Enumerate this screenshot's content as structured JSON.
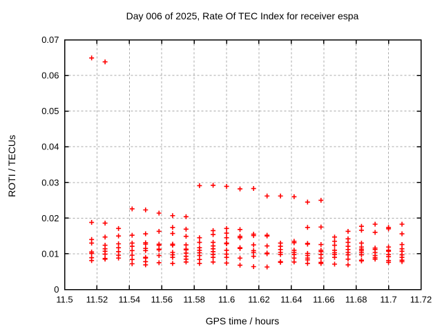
{
  "chart_data": {
    "type": "scatter",
    "title": "Day 006 of 2025, Rate Of TEC Index for receiver espa",
    "xlabel": "GPS time / hours",
    "ylabel": "ROTI / TECUs",
    "xlim": [
      11.5,
      11.72
    ],
    "ylim": [
      0,
      0.07
    ],
    "grid": true,
    "legend_position": "none",
    "marker": {
      "shape": "plus",
      "color": "#ff0000",
      "size": 7
    },
    "xticks": [
      {
        "v": 11.5,
        "label": "11.5"
      },
      {
        "v": 11.52,
        "label": "11.52"
      },
      {
        "v": 11.54,
        "label": "11.54"
      },
      {
        "v": 11.56,
        "label": "11.56"
      },
      {
        "v": 11.58,
        "label": "11.58"
      },
      {
        "v": 11.6,
        "label": "11.6"
      },
      {
        "v": 11.62,
        "label": "11.62"
      },
      {
        "v": 11.64,
        "label": "11.64"
      },
      {
        "v": 11.66,
        "label": "11.66"
      },
      {
        "v": 11.68,
        "label": "11.68"
      },
      {
        "v": 11.7,
        "label": "11.7"
      },
      {
        "v": 11.72,
        "label": "11.72"
      }
    ],
    "yticks": [
      {
        "v": 0,
        "label": "0"
      },
      {
        "v": 0.01,
        "label": "0.01"
      },
      {
        "v": 0.02,
        "label": "0.02"
      },
      {
        "v": 0.03,
        "label": "0.03"
      },
      {
        "v": 0.04,
        "label": "0.04"
      },
      {
        "v": 0.05,
        "label": "0.05"
      },
      {
        "v": 0.06,
        "label": "0.06"
      },
      {
        "v": 0.07,
        "label": "0.07"
      }
    ],
    "series": [
      {
        "name": "ROTI",
        "points": [
          [
            11.5167,
            0.0649
          ],
          [
            11.5167,
            0.0188
          ],
          [
            11.5167,
            0.014
          ],
          [
            11.5167,
            0.013
          ],
          [
            11.5167,
            0.0105
          ],
          [
            11.5167,
            0.0101
          ],
          [
            11.5167,
            0.0089
          ],
          [
            11.5167,
            0.0081
          ],
          [
            11.525,
            0.0638
          ],
          [
            11.525,
            0.0186
          ],
          [
            11.525,
            0.0147
          ],
          [
            11.525,
            0.0124
          ],
          [
            11.525,
            0.0114
          ],
          [
            11.525,
            0.0107
          ],
          [
            11.525,
            0.0099
          ],
          [
            11.525,
            0.0087
          ],
          [
            11.525,
            0.0085
          ],
          [
            11.5333,
            0.0171
          ],
          [
            11.5333,
            0.015
          ],
          [
            11.5333,
            0.0128
          ],
          [
            11.5333,
            0.0117
          ],
          [
            11.5333,
            0.0106
          ],
          [
            11.5333,
            0.0096
          ],
          [
            11.5333,
            0.0088
          ],
          [
            11.5417,
            0.0226
          ],
          [
            11.5417,
            0.0152
          ],
          [
            11.5417,
            0.013
          ],
          [
            11.5417,
            0.0121
          ],
          [
            11.5417,
            0.0109
          ],
          [
            11.5417,
            0.0096
          ],
          [
            11.5417,
            0.0084
          ],
          [
            11.5417,
            0.0072
          ],
          [
            11.55,
            0.0223
          ],
          [
            11.55,
            0.0156
          ],
          [
            11.55,
            0.0131
          ],
          [
            11.55,
            0.0127
          ],
          [
            11.55,
            0.0115
          ],
          [
            11.55,
            0.0109
          ],
          [
            11.55,
            0.009
          ],
          [
            11.55,
            0.0088
          ],
          [
            11.55,
            0.0078
          ],
          [
            11.55,
            0.0069
          ],
          [
            11.5583,
            0.0214
          ],
          [
            11.5583,
            0.0163
          ],
          [
            11.5583,
            0.0127
          ],
          [
            11.5583,
            0.0124
          ],
          [
            11.5583,
            0.0113
          ],
          [
            11.5583,
            0.0111
          ],
          [
            11.5583,
            0.0095
          ],
          [
            11.5583,
            0.0075
          ],
          [
            11.5667,
            0.0207
          ],
          [
            11.5667,
            0.0174
          ],
          [
            11.5667,
            0.0157
          ],
          [
            11.5667,
            0.0127
          ],
          [
            11.5667,
            0.0124
          ],
          [
            11.5667,
            0.0104
          ],
          [
            11.5667,
            0.0097
          ],
          [
            11.5667,
            0.009
          ],
          [
            11.5667,
            0.0073
          ],
          [
            11.575,
            0.0204
          ],
          [
            11.575,
            0.0169
          ],
          [
            11.575,
            0.0149
          ],
          [
            11.575,
            0.0125
          ],
          [
            11.575,
            0.0113
          ],
          [
            11.575,
            0.0111
          ],
          [
            11.575,
            0.0102
          ],
          [
            11.575,
            0.0093
          ],
          [
            11.575,
            0.0085
          ],
          [
            11.575,
            0.0077
          ],
          [
            11.5833,
            0.0291
          ],
          [
            11.5833,
            0.0145
          ],
          [
            11.5833,
            0.0132
          ],
          [
            11.5833,
            0.0117
          ],
          [
            11.5833,
            0.011
          ],
          [
            11.5833,
            0.0103
          ],
          [
            11.5833,
            0.0095
          ],
          [
            11.5833,
            0.0084
          ],
          [
            11.5833,
            0.0073
          ],
          [
            11.5917,
            0.0292
          ],
          [
            11.5917,
            0.0165
          ],
          [
            11.5917,
            0.0154
          ],
          [
            11.5917,
            0.0132
          ],
          [
            11.5917,
            0.0122
          ],
          [
            11.5917,
            0.0114
          ],
          [
            11.5917,
            0.0106
          ],
          [
            11.5917,
            0.0098
          ],
          [
            11.5917,
            0.009
          ],
          [
            11.5917,
            0.0077
          ],
          [
            11.6,
            0.0289
          ],
          [
            11.6,
            0.0171
          ],
          [
            11.6,
            0.0158
          ],
          [
            11.6,
            0.0145
          ],
          [
            11.6,
            0.013
          ],
          [
            11.6,
            0.0128
          ],
          [
            11.6,
            0.011
          ],
          [
            11.6,
            0.0099
          ],
          [
            11.6,
            0.009
          ],
          [
            11.6,
            0.0074
          ],
          [
            11.6083,
            0.0282
          ],
          [
            11.6083,
            0.0168
          ],
          [
            11.6083,
            0.0149
          ],
          [
            11.6083,
            0.0145
          ],
          [
            11.6083,
            0.0117
          ],
          [
            11.6083,
            0.0115
          ],
          [
            11.6083,
            0.0088
          ],
          [
            11.6083,
            0.0068
          ],
          [
            11.6167,
            0.0283
          ],
          [
            11.6167,
            0.0155
          ],
          [
            11.6167,
            0.0151
          ],
          [
            11.6167,
            0.0125
          ],
          [
            11.6167,
            0.0109
          ],
          [
            11.6167,
            0.0104
          ],
          [
            11.6167,
            0.0093
          ],
          [
            11.6167,
            0.0064
          ],
          [
            11.625,
            0.0262
          ],
          [
            11.625,
            0.0152
          ],
          [
            11.625,
            0.015
          ],
          [
            11.625,
            0.0122
          ],
          [
            11.625,
            0.0102
          ],
          [
            11.625,
            0.01
          ],
          [
            11.625,
            0.0063
          ],
          [
            11.6333,
            0.0262
          ],
          [
            11.6333,
            0.013
          ],
          [
            11.6333,
            0.0121
          ],
          [
            11.6333,
            0.0112
          ],
          [
            11.6333,
            0.0104
          ],
          [
            11.6333,
            0.0098
          ],
          [
            11.6333,
            0.0078
          ],
          [
            11.6333,
            0.0076
          ],
          [
            11.6417,
            0.026
          ],
          [
            11.6417,
            0.0135
          ],
          [
            11.6417,
            0.0131
          ],
          [
            11.6417,
            0.011
          ],
          [
            11.6417,
            0.0104
          ],
          [
            11.6417,
            0.0098
          ],
          [
            11.6417,
            0.0088
          ],
          [
            11.6417,
            0.0077
          ],
          [
            11.65,
            0.0245
          ],
          [
            11.65,
            0.0174
          ],
          [
            11.65,
            0.0129
          ],
          [
            11.65,
            0.0127
          ],
          [
            11.65,
            0.0101
          ],
          [
            11.65,
            0.0095
          ],
          [
            11.65,
            0.0088
          ],
          [
            11.65,
            0.0083
          ],
          [
            11.65,
            0.0073
          ],
          [
            11.6583,
            0.025
          ],
          [
            11.6583,
            0.0175
          ],
          [
            11.6583,
            0.0126
          ],
          [
            11.6583,
            0.011
          ],
          [
            11.6583,
            0.0106
          ],
          [
            11.6583,
            0.0098
          ],
          [
            11.6583,
            0.0088
          ],
          [
            11.6583,
            0.0076
          ],
          [
            11.6583,
            0.0073
          ],
          [
            11.6667,
            0.0147
          ],
          [
            11.6667,
            0.0135
          ],
          [
            11.6667,
            0.0124
          ],
          [
            11.6667,
            0.011
          ],
          [
            11.6667,
            0.0103
          ],
          [
            11.6667,
            0.0098
          ],
          [
            11.6667,
            0.009
          ],
          [
            11.6667,
            0.0071
          ],
          [
            11.675,
            0.0163
          ],
          [
            11.675,
            0.0142
          ],
          [
            11.675,
            0.0132
          ],
          [
            11.675,
            0.0121
          ],
          [
            11.675,
            0.0112
          ],
          [
            11.675,
            0.0104
          ],
          [
            11.675,
            0.0097
          ],
          [
            11.675,
            0.0085
          ],
          [
            11.675,
            0.0069
          ],
          [
            11.6833,
            0.0177
          ],
          [
            11.6833,
            0.0166
          ],
          [
            11.6833,
            0.013
          ],
          [
            11.6833,
            0.0119
          ],
          [
            11.6833,
            0.0113
          ],
          [
            11.6833,
            0.0109
          ],
          [
            11.6833,
            0.0104
          ],
          [
            11.6833,
            0.0097
          ],
          [
            11.6833,
            0.0082
          ],
          [
            11.6833,
            0.008
          ],
          [
            11.6917,
            0.0183
          ],
          [
            11.6917,
            0.016
          ],
          [
            11.6917,
            0.0116
          ],
          [
            11.6917,
            0.0112
          ],
          [
            11.6917,
            0.0104
          ],
          [
            11.6917,
            0.0095
          ],
          [
            11.6917,
            0.0089
          ],
          [
            11.6917,
            0.0085
          ],
          [
            11.7,
            0.0174
          ],
          [
            11.7,
            0.017
          ],
          [
            11.7,
            0.0119
          ],
          [
            11.7,
            0.011
          ],
          [
            11.7,
            0.0107
          ],
          [
            11.7,
            0.0098
          ],
          [
            11.7,
            0.0092
          ],
          [
            11.7,
            0.0081
          ],
          [
            11.7,
            0.0076
          ],
          [
            11.7083,
            0.0183
          ],
          [
            11.7083,
            0.0156
          ],
          [
            11.7083,
            0.0126
          ],
          [
            11.7083,
            0.0114
          ],
          [
            11.7083,
            0.0107
          ],
          [
            11.7083,
            0.0097
          ],
          [
            11.7083,
            0.009
          ],
          [
            11.7083,
            0.0082
          ],
          [
            11.7083,
            0.0078
          ]
        ]
      }
    ]
  },
  "style": {
    "background": "#ffffff",
    "axis_color": "#000000",
    "grid_color": "#a8a8a8",
    "marker_color": "#ff0000",
    "text_color": "#000000"
  }
}
